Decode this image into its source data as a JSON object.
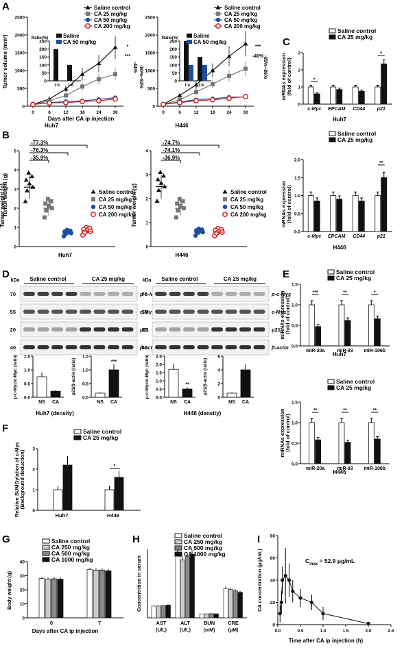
{
  "figure": {
    "panel_labels": [
      "A",
      "B",
      "C",
      "D",
      "E",
      "F",
      "G",
      "H",
      "I"
    ],
    "colors": {
      "black": "#111111",
      "gray": "#777777",
      "blue": "#1f4ea1",
      "red": "#d0201f",
      "lightgray": "#bbbbbb",
      "darkgray": "#555555"
    }
  },
  "panelA": {
    "ylabel": "Tumor volume (mm³)",
    "xlabel": "Days after CA ip injection",
    "legend": [
      "Saline control",
      "CA 25 mg/kg",
      "CA 50 mg/kg",
      "CA 200 mg/kg"
    ],
    "charts": [
      {
        "title": "Huh7",
        "days": [
          0,
          6,
          12,
          18,
          24,
          30
        ],
        "series": [
          {
            "name": "Saline control",
            "values": [
              50,
              200,
              480,
              900,
              1200,
              1650
            ]
          },
          {
            "name": "CA 25 mg/kg",
            "values": [
              50,
              150,
              300,
              550,
              760,
              900
            ]
          },
          {
            "name": "CA 50 mg/kg",
            "values": [
              50,
              100,
              130,
              150,
              190,
              240
            ]
          },
          {
            "name": "CA 200 mg/kg",
            "values": [
              50,
              90,
              100,
              130,
              150,
              200
            ]
          }
        ],
        "ylim": [
          0,
          2500
        ],
        "yticks": [
          "0",
          "500",
          "1000",
          "1500",
          "2000",
          "2500"
        ],
        "annotations": [
          "*",
          "***",
          "-44%",
          "-80%~83%"
        ],
        "inset": {
          "ylabel": "Ratio(%)",
          "legend": [
            "Saline",
            "CA 50 mg/kg"
          ],
          "categories": [
            "1:4",
            "1:8"
          ],
          "values": [
            200,
            100
          ],
          "ylim": [
            0,
            250
          ],
          "yticks": [
            "0",
            "50",
            "100",
            "150",
            "200",
            "250"
          ]
        }
      },
      {
        "title": "H446",
        "days": [
          0,
          6,
          12,
          18,
          24,
          30
        ],
        "series": [
          {
            "name": "Saline control",
            "values": [
              50,
              300,
              600,
              1000,
              1400,
              1750
            ]
          },
          {
            "name": "CA 25 mg/kg",
            "values": [
              50,
              180,
              400,
              620,
              850,
              1050
            ]
          },
          {
            "name": "CA 50 mg/kg",
            "values": [
              50,
              120,
              180,
              210,
              250,
              260
            ]
          },
          {
            "name": "CA 200 mg/kg",
            "values": [
              50,
              100,
              150,
              180,
              220,
              270
            ]
          }
        ],
        "ylim": [
          0,
          2500
        ],
        "yticks": [
          "0",
          "500",
          "1000",
          "1500",
          "2000",
          "2500"
        ],
        "annotations": [
          "***",
          "-40%",
          "-85%~86%"
        ],
        "inset": {
          "ylabel": "Ratio(%)",
          "legend": [
            "Saline",
            "CA 50 mg/kg"
          ],
          "categories": [
            "1:4",
            "1:8"
          ],
          "values": [
            [
              250,
              100
            ],
            [
              150,
              100
            ]
          ],
          "ylim": [
            0,
            250
          ],
          "yticks": [
            "0",
            "50",
            "100",
            "150",
            "200",
            "250"
          ]
        }
      }
    ]
  },
  "panelB": {
    "ylabel": "Tumor weight (g)",
    "legend": [
      "Saline control",
      "CA 25 mg/kg",
      "CA 50 mg/kg",
      "CA 200 mg/kg"
    ],
    "charts": [
      {
        "title": "Huh7",
        "brackets": [
          "-77.3%",
          "-76.3%",
          "-35.9%"
        ],
        "means": [
          3.1,
          2.0,
          0.7,
          0.8
        ],
        "ylim": [
          0,
          5
        ],
        "yticks": [
          "0",
          "1",
          "2",
          "3",
          "4",
          "5"
        ]
      },
      {
        "title": "H446",
        "brackets": [
          "-74.7%",
          "-74.1%",
          "-36.9%"
        ],
        "means": [
          2.5,
          1.6,
          0.6,
          0.6
        ],
        "ylim": [
          0,
          4
        ],
        "yticks": [
          "0",
          "1",
          "2",
          "3",
          "4"
        ]
      }
    ]
  },
  "panelC": {
    "ylabel1": "mRNAs expression",
    "ylabel2": "(fold of control)",
    "legend": [
      "Saline control",
      "CA 25 mg/kg"
    ],
    "categories": [
      "c-Myc",
      "EPCAM",
      "CD44",
      "p21"
    ],
    "charts": [
      {
        "title": "Huh7",
        "saline": [
          1.0,
          1.0,
          1.0,
          1.0
        ],
        "ca": [
          0.6,
          0.85,
          0.75,
          2.35
        ],
        "ylim": [
          0,
          3
        ],
        "yticks": [
          "0",
          "1",
          "2",
          "3"
        ],
        "sig": [
          "*",
          "*"
        ]
      },
      {
        "title": "H446",
        "saline": [
          1.0,
          1.0,
          1.0,
          1.0
        ],
        "ca": [
          0.85,
          0.9,
          0.85,
          1.5
        ],
        "ylim": [
          0,
          2
        ],
        "yticks": [
          "0.0",
          "0.5",
          "1.0",
          "1.5",
          "2.0"
        ],
        "sig": [
          "**"
        ]
      }
    ]
  },
  "panelD": {
    "kda": "kDa",
    "groups": [
      "Saline control",
      "CA 25 mg/kg"
    ],
    "bands": [
      "p-c-Myc",
      "c-Myc",
      "p21",
      "β-actin"
    ],
    "markers": [
      "70",
      "55",
      "20",
      "40"
    ],
    "charts": [
      {
        "title": "Huh7 (density)",
        "plots": [
          {
            "ylabel": "p-c-Myc/c-Myc (ratio)",
            "categories": [
              "NS",
              "CA"
            ],
            "values": [
              0.75,
              0.22
            ],
            "ylim": [
              0,
              1.5
            ],
            "yticks": [
              "0.0",
              "0.5",
              "1.0",
              "1.5"
            ],
            "sig": ""
          },
          {
            "ylabel": "p21/β-actin (ratio)",
            "categories": [
              "NS",
              "CA"
            ],
            "values": [
              0.15,
              1.0
            ],
            "ylim": [
              0,
              1.5
            ],
            "yticks": [
              "0.0",
              "0.5",
              "1.0",
              "1.5"
            ],
            "sig": "***"
          }
        ]
      },
      {
        "title": "H446 (density)",
        "plots": [
          {
            "ylabel": "p-c-Myc/c-Myc (ratio)",
            "categories": [
              "NS",
              "CA"
            ],
            "values": [
              1.7,
              0.5
            ],
            "ylim": [
              0,
              2.5
            ],
            "yticks": [
              "0.0",
              "0.5",
              "1.0",
              "1.5",
              "2.0",
              "2.5"
            ],
            "sig": "**"
          },
          {
            "ylabel": "p21/β-actin (ratio)",
            "categories": [
              "NS",
              "CA"
            ],
            "values": [
              0.6,
              4.0
            ],
            "ylim": [
              0,
              6
            ],
            "yticks": [
              "0",
              "2",
              "4",
              "6"
            ],
            "sig": ""
          }
        ]
      }
    ]
  },
  "panelE": {
    "ylabel1": "miRNAs expression",
    "ylabel2": "(fold of control)",
    "legend": [
      "Saline control",
      "CA 25 mg/kg"
    ],
    "categories": [
      "miR-20a",
      "miR-93",
      "miR-106b"
    ],
    "charts": [
      {
        "title": "Huh7",
        "saline": [
          1.0,
          1.0,
          1.0
        ],
        "ca": [
          0.47,
          0.62,
          0.66
        ],
        "sig": [
          "***",
          "**",
          "*"
        ],
        "ylim": [
          0,
          1.5
        ],
        "yticks": [
          "0.0",
          "0.5",
          "1.0",
          "1.5"
        ]
      },
      {
        "title": "H446",
        "saline": [
          1.0,
          1.0,
          1.0
        ],
        "ca": [
          0.58,
          0.52,
          0.6
        ],
        "sig": [
          "**",
          "**",
          "**"
        ],
        "ylim": [
          0,
          1.5
        ],
        "yticks": [
          "0.0",
          "0.5",
          "1.0",
          "1.5"
        ]
      }
    ]
  },
  "panelF": {
    "ylabel1": "Relative SUMOylation of c-Myc",
    "ylabel2": "(Background deduction)",
    "legend": [
      "Saline control",
      "CA 25 mg/kg"
    ],
    "categories": [
      "Huh7",
      "H446"
    ],
    "saline": [
      1.0,
      1.0
    ],
    "ca": [
      2.2,
      1.6
    ],
    "ylim": [
      0,
      3
    ],
    "yticks": [
      "0",
      "1",
      "2",
      "3"
    ],
    "sig": "*"
  },
  "panelG": {
    "ylabel": "Body weight (g)",
    "xlabel": "Days after CA ip injection",
    "legend": [
      "Saline control",
      "CA 250 mg/kg",
      "CA 500 mg/kg",
      "CA 1000 mg/kg"
    ],
    "categories": [
      "0",
      "7"
    ],
    "values": [
      [
        28,
        27.5,
        27.8,
        27.5
      ],
      [
        34.5,
        34,
        34,
        33.5
      ]
    ],
    "ylim": [
      0,
      40
    ],
    "yticks": [
      "0",
      "10",
      "20",
      "30",
      "40"
    ]
  },
  "panelH": {
    "ylabel": "Concentrition in serum",
    "legend": [
      "Saline control",
      "CA 250 mg/kg",
      "CA 500 mg/kg",
      "CA 1000 mg/kg"
    ],
    "categories": [
      "AST",
      "ALT",
      "BUN",
      "CRE"
    ],
    "units": [
      "(U/L)",
      "(U/L)",
      "(mM)",
      "(μM)"
    ],
    "values": [
      [
        24,
        24,
        25,
        26
      ],
      [
        130,
        118,
        125,
        130
      ],
      [
        8,
        8.2,
        8.5,
        8.2
      ],
      [
        60,
        58,
        55,
        52
      ]
    ],
    "ylim": [
      0,
      140
    ]
  },
  "panelI": {
    "ylabel": "CA concentration (μg/mL)",
    "xlabel": "Time after CA ip injection (h)",
    "annotation": "C",
    "annotation_sub": "max",
    "annotation_rest": " = 52.9 μg/mL",
    "x": [
      0.05,
      0.08,
      0.1,
      0.17,
      0.25,
      0.33,
      0.5,
      0.75,
      1.0,
      2.0
    ],
    "y": [
      10,
      20,
      40,
      44,
      40,
      30,
      24,
      20,
      10,
      1
    ],
    "err": [
      8,
      10,
      12,
      25,
      15,
      10,
      8,
      7,
      6,
      1
    ],
    "xlim": [
      0,
      2.5
    ],
    "ylim": [
      0,
      80
    ],
    "xticks": [
      "0.0",
      "0.5",
      "1.0",
      "1.5",
      "2.0",
      "2.5"
    ],
    "yticks": [
      "0",
      "20",
      "40",
      "60",
      "80"
    ]
  }
}
